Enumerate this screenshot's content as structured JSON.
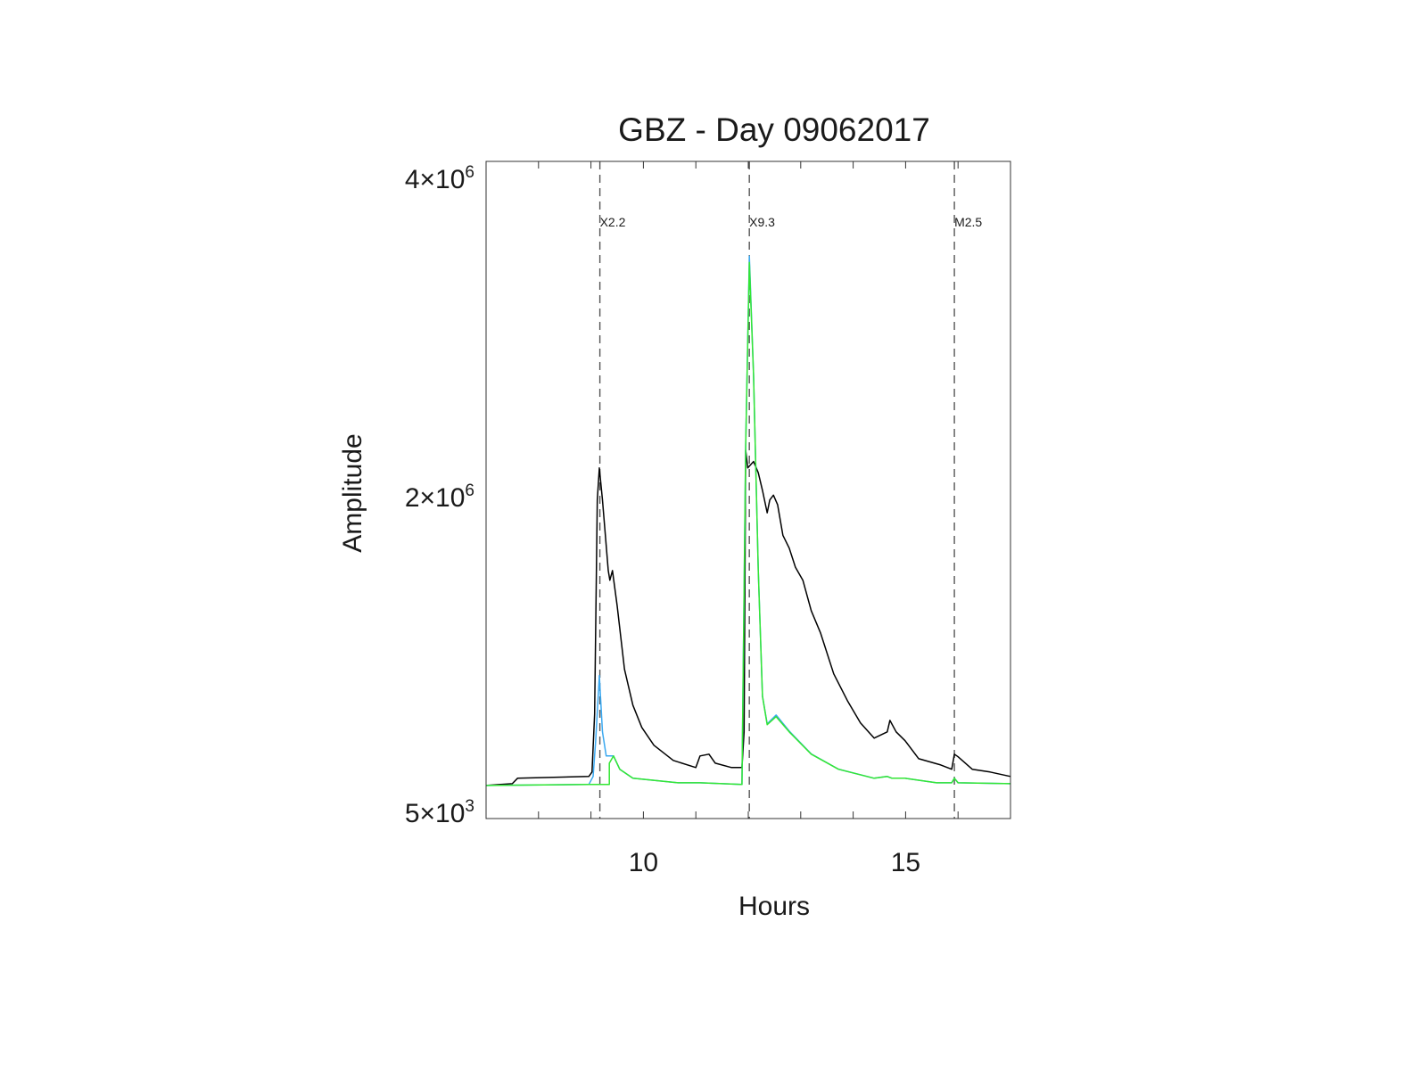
{
  "chart_data": {
    "type": "line",
    "title": "GBZ - Day 09062017",
    "xlabel": "Hours",
    "ylabel": "Amplitude",
    "xlim": [
      7,
      17
    ],
    "ylim": [
      5000,
      4100000
    ],
    "x_ticks": [
      {
        "value": 10,
        "label": "10"
      },
      {
        "value": 15,
        "label": "15"
      }
    ],
    "x_minor_ticks": [
      8,
      9,
      10,
      11,
      12,
      13,
      14,
      15,
      16
    ],
    "y_ticks": [
      {
        "value": 5000,
        "mantissa": "5",
        "exp": "3"
      },
      {
        "value": 2000000,
        "mantissa": "2",
        "exp": "6"
      },
      {
        "value": 4000000,
        "mantissa": "4",
        "exp": "6"
      }
    ],
    "grid": false,
    "events": [
      {
        "label": "X2.2",
        "x": 9.17
      },
      {
        "label": "X9.3",
        "x": 12.02
      },
      {
        "label": "M2.5",
        "x": 15.93
      }
    ],
    "series": [
      {
        "name": "black",
        "color": "#000000",
        "points": [
          [
            7,
            211000
          ],
          [
            7.5,
            222000
          ],
          [
            7.6,
            256000
          ],
          [
            8.96,
            267000
          ],
          [
            9.02,
            295000
          ],
          [
            9.07,
            656000
          ],
          [
            9.12,
            1990000
          ],
          [
            9.16,
            2190000
          ],
          [
            9.22,
            1990000
          ],
          [
            9.33,
            1550000
          ],
          [
            9.36,
            1490000
          ],
          [
            9.41,
            1550000
          ],
          [
            9.5,
            1330000
          ],
          [
            9.64,
            935000
          ],
          [
            9.8,
            712000
          ],
          [
            9.97,
            573000
          ],
          [
            10.2,
            462000
          ],
          [
            10.57,
            367000
          ],
          [
            11.0,
            323000
          ],
          [
            11.08,
            395000
          ],
          [
            11.25,
            406000
          ],
          [
            11.37,
            350000
          ],
          [
            11.68,
            323000
          ],
          [
            11.88,
            323000
          ],
          [
            11.92,
            545000
          ],
          [
            11.95,
            2300000
          ],
          [
            11.99,
            2190000
          ],
          [
            12.1,
            2230000
          ],
          [
            12.19,
            2160000
          ],
          [
            12.27,
            2050000
          ],
          [
            12.36,
            1910000
          ],
          [
            12.41,
            1990000
          ],
          [
            12.48,
            2020000
          ],
          [
            12.56,
            1960000
          ],
          [
            12.66,
            1770000
          ],
          [
            12.78,
            1690000
          ],
          [
            12.9,
            1570000
          ],
          [
            13.04,
            1490000
          ],
          [
            13.2,
            1300000
          ],
          [
            13.38,
            1160000
          ],
          [
            13.63,
            907000
          ],
          [
            13.89,
            740000
          ],
          [
            14.14,
            601000
          ],
          [
            14.4,
            506000
          ],
          [
            14.65,
            545000
          ],
          [
            14.7,
            617000
          ],
          [
            14.82,
            545000
          ],
          [
            14.99,
            490000
          ],
          [
            15.25,
            378000
          ],
          [
            15.67,
            339000
          ],
          [
            15.88,
            312000
          ],
          [
            15.93,
            406000
          ],
          [
            16.0,
            390000
          ],
          [
            16.27,
            312000
          ],
          [
            16.61,
            295000
          ],
          [
            17,
            267000
          ]
        ]
      },
      {
        "name": "blue",
        "color": "#3aa8f0",
        "points": [
          [
            7,
            211000
          ],
          [
            8.96,
            217000
          ],
          [
            9.04,
            267000
          ],
          [
            9.09,
            490000
          ],
          [
            9.16,
            896000
          ],
          [
            9.22,
            545000
          ],
          [
            9.29,
            395000
          ],
          [
            9.36,
            395000
          ],
          [
            9.43,
            395000
          ],
          [
            9.55,
            312000
          ],
          [
            9.8,
            256000
          ],
          [
            10.66,
            228000
          ],
          [
            11.08,
            228000
          ],
          [
            11.88,
            217000
          ],
          [
            11.95,
            2330000
          ],
          [
            12.02,
            3510000
          ],
          [
            12.1,
            2770000
          ],
          [
            12.19,
            1550000
          ],
          [
            12.27,
            768000
          ],
          [
            12.36,
            595000
          ],
          [
            12.53,
            650000
          ],
          [
            12.78,
            550000
          ],
          [
            13.2,
            408000
          ],
          [
            13.72,
            313000
          ],
          [
            14.4,
            256000
          ],
          [
            14.65,
            267000
          ],
          [
            14.74,
            256000
          ],
          [
            14.99,
            256000
          ],
          [
            15.59,
            228000
          ],
          [
            15.88,
            228000
          ],
          [
            15.93,
            256000
          ],
          [
            16.0,
            228000
          ],
          [
            17,
            222000
          ]
        ]
      },
      {
        "name": "green",
        "color": "#33e633",
        "points": [
          [
            7,
            211000
          ],
          [
            8.96,
            217000
          ],
          [
            9.35,
            217000
          ],
          [
            9.35,
            350000
          ],
          [
            9.43,
            395000
          ],
          [
            9.55,
            312000
          ],
          [
            9.8,
            256000
          ],
          [
            10.66,
            228000
          ],
          [
            11.08,
            228000
          ],
          [
            11.88,
            217000
          ],
          [
            11.95,
            2330000
          ],
          [
            12.02,
            3470000
          ],
          [
            12.1,
            2770000
          ],
          [
            12.19,
            1550000
          ],
          [
            12.27,
            768000
          ],
          [
            12.36,
            590000
          ],
          [
            12.53,
            640000
          ],
          [
            12.78,
            545000
          ],
          [
            13.2,
            406000
          ],
          [
            13.72,
            312000
          ],
          [
            14.4,
            256000
          ],
          [
            14.65,
            267000
          ],
          [
            14.74,
            256000
          ],
          [
            14.99,
            256000
          ],
          [
            15.59,
            228000
          ],
          [
            15.88,
            228000
          ],
          [
            15.93,
            256000
          ],
          [
            16.0,
            228000
          ],
          [
            17,
            222000
          ]
        ]
      }
    ]
  }
}
